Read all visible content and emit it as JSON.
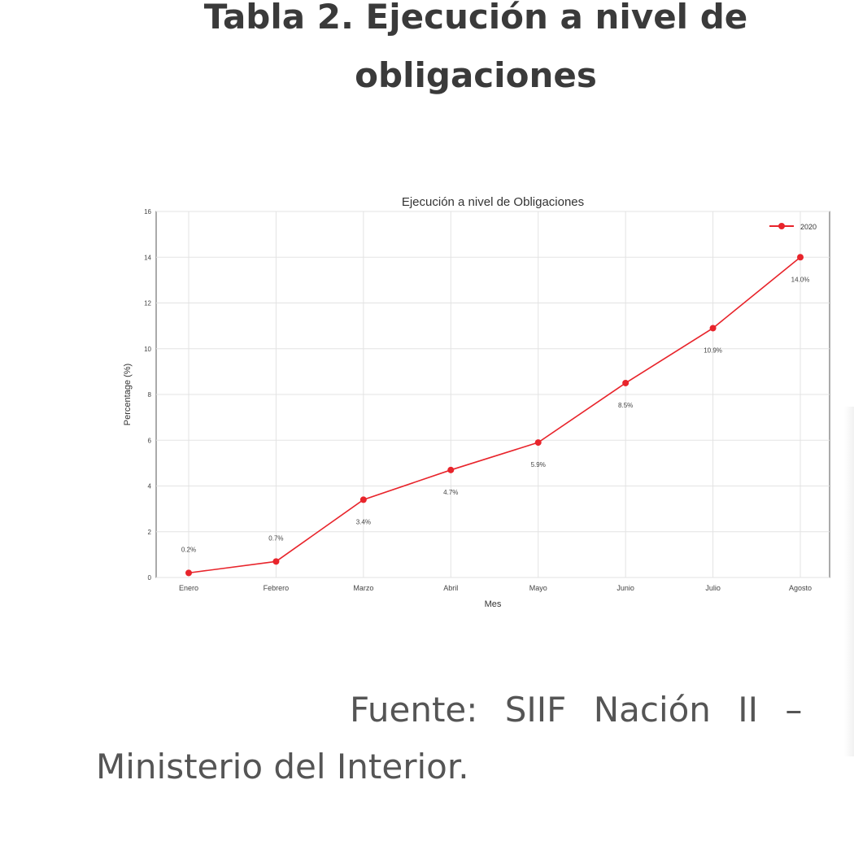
{
  "document": {
    "heading_line1": "Tabla 2. Ejecución a nivel de",
    "heading_line2": "obligaciones",
    "source_line1": "Fuente: SIIF Nación II –",
    "source_line2": "Ministerio del Interior."
  },
  "chart_data": {
    "type": "line",
    "title": "Ejecución a nivel de Obligaciones",
    "xlabel": "Mes",
    "ylabel": "Percentage (%)",
    "categories": [
      "Enero",
      "Febrero",
      "Marzo",
      "Abril",
      "Mayo",
      "Junio",
      "Julio",
      "Agosto"
    ],
    "series": [
      {
        "name": "2020",
        "values": [
          0.2,
          0.7,
          3.4,
          4.7,
          5.9,
          8.5,
          10.9,
          14.0
        ],
        "labels": [
          "0.2%",
          "0.7%",
          "3.4%",
          "4.7%",
          "5.9%",
          "8.5%",
          "10.9%",
          "14.0%"
        ],
        "color": "#e8242b"
      }
    ],
    "ylim": [
      0,
      16
    ],
    "yticks": [
      "0",
      "2",
      "4",
      "6",
      "8",
      "10",
      "12",
      "14",
      "16"
    ],
    "grid": true,
    "legend": "top-right"
  }
}
